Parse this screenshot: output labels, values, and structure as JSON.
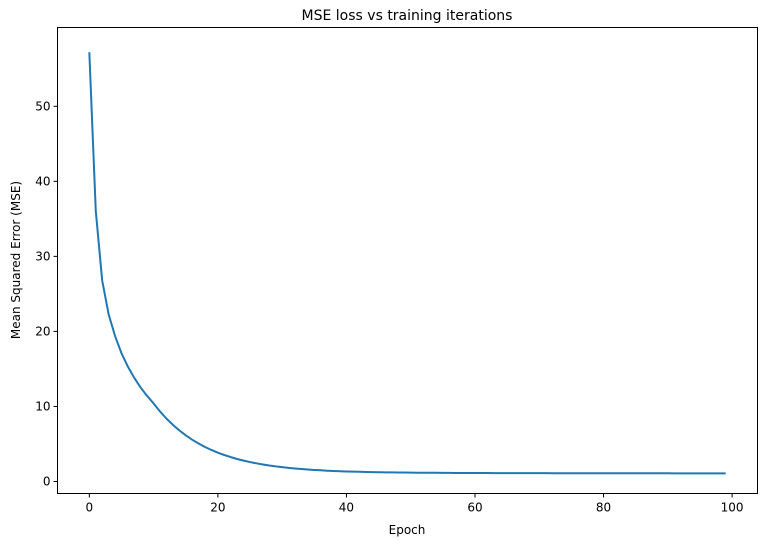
{
  "chart_data": {
    "type": "line",
    "title": "MSE loss vs training iterations",
    "xlabel": "Epoch",
    "ylabel": "Mean Squared Error (MSE)",
    "xlim": [
      -4.95,
      103.95
    ],
    "ylim": [
      -1.6,
      60.5
    ],
    "xticks": [
      "0",
      "20",
      "40",
      "60",
      "80",
      "100"
    ],
    "yticks": [
      "0",
      "10",
      "20",
      "30",
      "40",
      "50"
    ],
    "grid": false,
    "color": "#1f77b4",
    "series": [
      {
        "values": [
          57.2,
          36.1,
          26.8,
          22.3,
          19.4,
          17.1,
          15.3,
          13.8,
          12.5,
          11.4,
          10.4,
          9.33,
          8.38,
          7.55,
          6.81,
          6.15,
          5.57,
          5.06,
          4.6,
          4.2,
          3.84,
          3.53,
          3.25,
          3.0,
          2.78,
          2.59,
          2.42,
          2.27,
          2.13,
          2.01,
          1.91,
          1.82,
          1.73,
          1.66,
          1.6,
          1.54,
          1.49,
          1.44,
          1.4,
          1.37,
          1.34,
          1.31,
          1.29,
          1.27,
          1.25,
          1.23,
          1.22,
          1.21,
          1.2,
          1.19,
          1.18,
          1.17,
          1.17,
          1.16,
          1.16,
          1.15,
          1.15,
          1.14,
          1.14,
          1.14,
          1.13,
          1.13,
          1.13,
          1.12,
          1.12,
          1.12,
          1.12,
          1.11,
          1.11,
          1.11,
          1.11,
          1.11,
          1.1,
          1.1,
          1.1,
          1.1,
          1.1,
          1.1,
          1.1,
          1.09,
          1.09,
          1.09,
          1.09,
          1.09,
          1.09,
          1.09,
          1.09,
          1.09,
          1.09,
          1.09,
          1.09,
          1.08,
          1.08,
          1.08,
          1.08,
          1.08,
          1.08,
          1.08,
          1.08,
          1.08
        ]
      }
    ]
  }
}
